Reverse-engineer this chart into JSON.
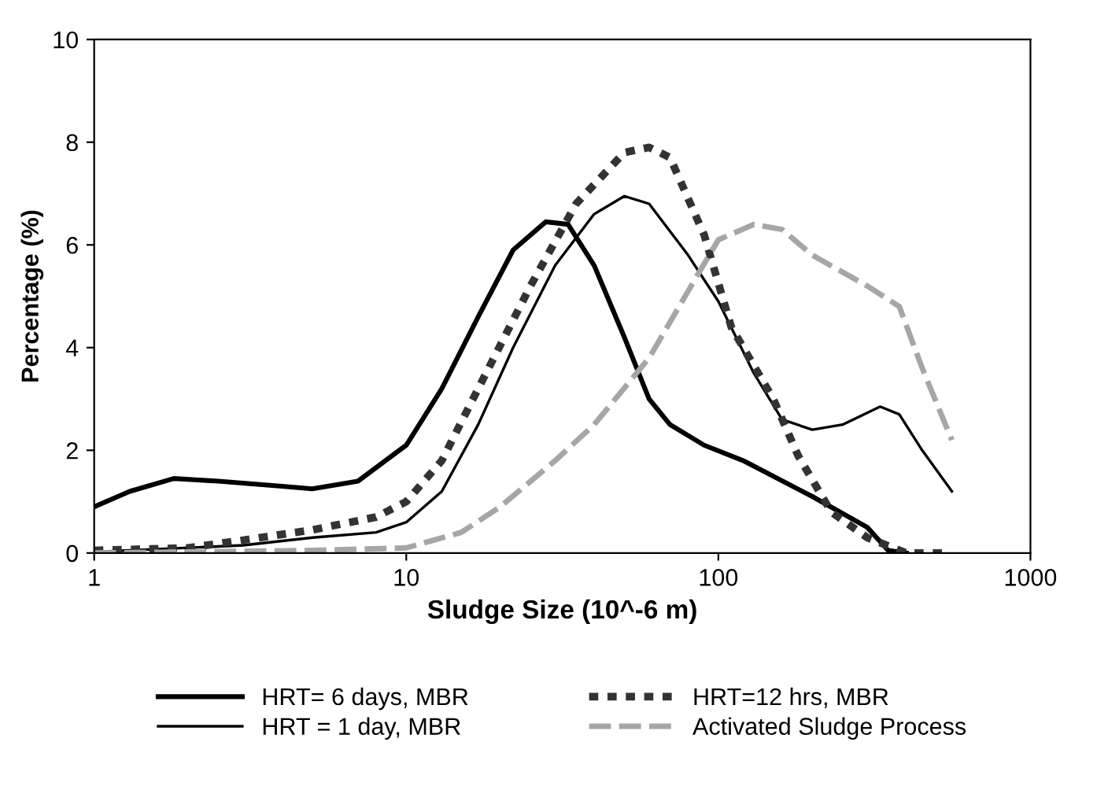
{
  "chart_data": {
    "type": "line",
    "xlabel": "Sludge Size (10^-6 m)",
    "ylabel": "Percentage (%)",
    "log": "x",
    "xlim": [
      1,
      1000
    ],
    "xticks": [
      1,
      10,
      100,
      1000
    ],
    "ylim": [
      0,
      10
    ],
    "yticks": [
      0,
      2,
      4,
      6,
      8,
      10
    ],
    "grid": false,
    "legend": "bottom",
    "series": [
      {
        "name": "HRT= 6 days, MBR",
        "color": "#000000",
        "line_style": "solid",
        "x": [
          1,
          1.3,
          1.8,
          2.5,
          4,
          5,
          7,
          10,
          13,
          17,
          22,
          28,
          33,
          40,
          50,
          60,
          70,
          90,
          120,
          200,
          300,
          350,
          400
        ],
        "values": [
          0.9,
          1.2,
          1.45,
          1.4,
          1.3,
          1.25,
          1.4,
          2.1,
          3.2,
          4.6,
          5.9,
          6.45,
          6.4,
          5.6,
          4.2,
          3.0,
          2.5,
          2.1,
          1.8,
          1.1,
          0.5,
          0.05,
          0
        ]
      },
      {
        "name": "HRT = 1 day, MBR",
        "color": "#000000",
        "line_style": "solid",
        "x": [
          1,
          3,
          5,
          8,
          10,
          13,
          17,
          22,
          30,
          40,
          50,
          60,
          80,
          100,
          130,
          160,
          200,
          250,
          330,
          380,
          450,
          560
        ],
        "values": [
          0.02,
          0.15,
          0.3,
          0.4,
          0.6,
          1.2,
          2.5,
          4.0,
          5.6,
          6.6,
          6.95,
          6.8,
          5.8,
          4.9,
          3.5,
          2.6,
          2.4,
          2.5,
          2.85,
          2.7,
          2.0,
          1.2
        ]
      },
      {
        "name": "HRT=12 hrs, MBR",
        "color": "#333333",
        "line_style": "dashed",
        "x": [
          1,
          2,
          3,
          5,
          8,
          10,
          13,
          17,
          25,
          35,
          50,
          60,
          70,
          90,
          110,
          150,
          180,
          230,
          300,
          400,
          550
        ],
        "values": [
          0.05,
          0.1,
          0.25,
          0.45,
          0.7,
          1.0,
          1.8,
          3.2,
          5.2,
          6.8,
          7.8,
          7.9,
          7.7,
          6.2,
          4.4,
          3.0,
          1.9,
          0.8,
          0.3,
          0,
          0
        ]
      },
      {
        "name": "Activated Sludge Process",
        "color": "#a6a6a6",
        "line_style": "dashed",
        "x": [
          1,
          5,
          10,
          15,
          20,
          30,
          40,
          60,
          80,
          100,
          130,
          160,
          200,
          300,
          380,
          450,
          560
        ],
        "values": [
          0,
          0.05,
          0.1,
          0.4,
          0.9,
          1.8,
          2.5,
          3.8,
          5.1,
          6.1,
          6.4,
          6.3,
          5.8,
          5.2,
          4.8,
          3.6,
          2.2
        ]
      }
    ]
  }
}
